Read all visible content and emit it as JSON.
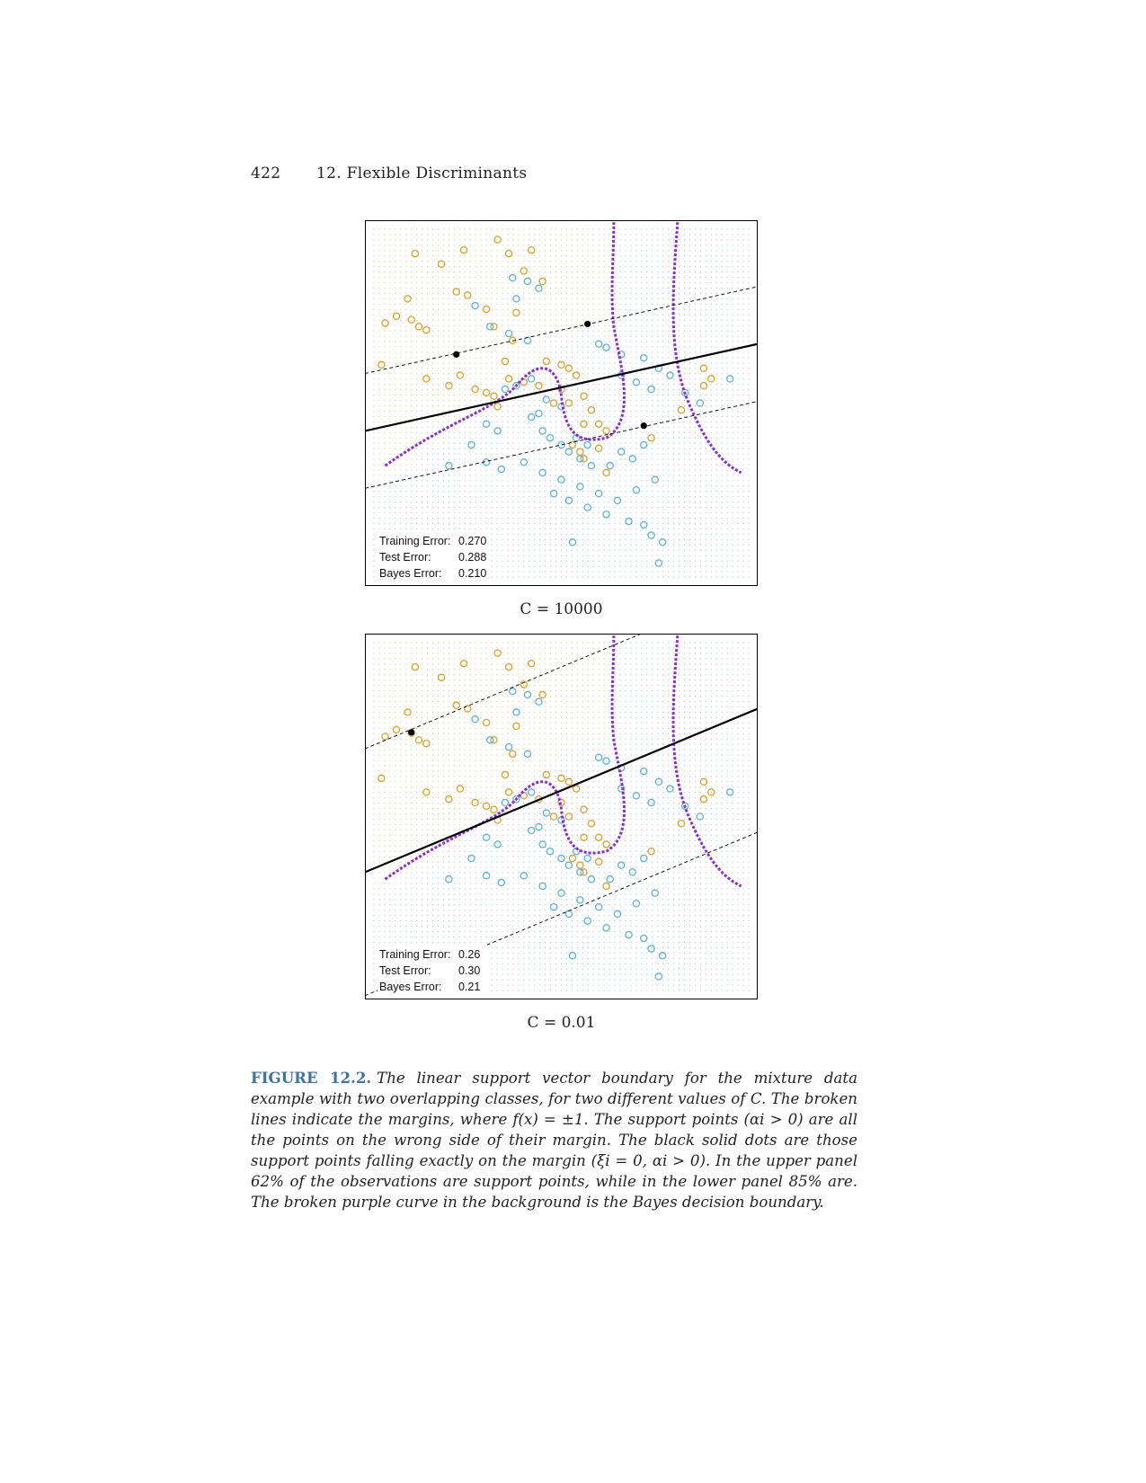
{
  "header": {
    "page_number": "422",
    "chapter": "12. Flexible Discriminants"
  },
  "panels": [
    {
      "title": "C = 10000",
      "errors": [
        {
          "label": "Training Error:",
          "value": "0.270"
        },
        {
          "label": "Test Error:",
          "value": "0.288"
        },
        {
          "label": "Bayes Error:",
          "value": "0.210"
        }
      ],
      "boundary": {
        "left_y": 0.42,
        "right_y": 0.67
      },
      "margin_offset": 0.165
    },
    {
      "title": "C = 0.01",
      "errors": [
        {
          "label": "Training Error:",
          "value": "0.26"
        },
        {
          "label": "Test Error:",
          "value": "0.30"
        },
        {
          "label": "Bayes Error:",
          "value": "0.21"
        }
      ],
      "boundary": {
        "left_y": 0.34,
        "right_y": 0.81
      },
      "margin_offset": 0.355
    }
  ],
  "colors": {
    "orange_class": "#e0a020",
    "blue_class": "#5ab4d8",
    "bayes": "#8a2be2",
    "svm": "#000000"
  },
  "caption": {
    "label": "FIGURE 12.2.",
    "text": "The linear support vector boundary for the mixture data example with two overlapping classes, for two different values of C. The broken lines indicate the margins, where f(x) = ±1. The support points (αi > 0) are all the points on the wrong side of their margin. The black solid dots are those support points falling exactly on the margin (ξi = 0, αi > 0). In the upper panel 62% of the observations are support points, while in the lower panel 85% are. The broken purple curve in the background is the Bayes decision boundary."
  },
  "chart_data": [
    {
      "type": "scatter",
      "title": "C = 10000",
      "series": [
        {
          "name": "",
          "color": "#e0a020",
          "points": [
            [
              0.11,
              0.93
            ],
            [
              0.18,
              0.9
            ],
            [
              0.24,
              0.94
            ],
            [
              0.33,
              0.97
            ],
            [
              0.36,
              0.93
            ],
            [
              0.42,
              0.94
            ],
            [
              0.4,
              0.88
            ],
            [
              0.45,
              0.85
            ],
            [
              0.06,
              0.75
            ],
            [
              0.1,
              0.74
            ],
            [
              0.12,
              0.72
            ],
            [
              0.14,
              0.71
            ],
            [
              0.03,
              0.73
            ],
            [
              0.22,
              0.82
            ],
            [
              0.25,
              0.81
            ],
            [
              0.3,
              0.77
            ],
            [
              0.32,
              0.72
            ],
            [
              0.38,
              0.76
            ],
            [
              0.37,
              0.68
            ],
            [
              0.46,
              0.62
            ],
            [
              0.5,
              0.61
            ],
            [
              0.52,
              0.6
            ],
            [
              0.54,
              0.58
            ],
            [
              0.35,
              0.62
            ],
            [
              0.36,
              0.57
            ],
            [
              0.4,
              0.56
            ],
            [
              0.44,
              0.55
            ],
            [
              0.5,
              0.54
            ],
            [
              0.48,
              0.5
            ],
            [
              0.52,
              0.5
            ],
            [
              0.56,
              0.52
            ],
            [
              0.58,
              0.48
            ],
            [
              0.56,
              0.44
            ],
            [
              0.6,
              0.44
            ],
            [
              0.62,
              0.42
            ],
            [
              0.2,
              0.55
            ],
            [
              0.27,
              0.54
            ],
            [
              0.3,
              0.53
            ],
            [
              0.32,
              0.52
            ],
            [
              0.33,
              0.49
            ],
            [
              0.02,
              0.61
            ],
            [
              0.14,
              0.57
            ],
            [
              0.23,
              0.58
            ],
            [
              0.09,
              0.8
            ],
            [
              0.53,
              0.38
            ],
            [
              0.55,
              0.36
            ],
            [
              0.56,
              0.34
            ],
            [
              0.6,
              0.37
            ],
            [
              0.62,
              0.3
            ],
            [
              0.74,
              0.4
            ],
            [
              0.82,
              0.48
            ],
            [
              0.88,
              0.55
            ],
            [
              0.9,
              0.57
            ],
            [
              0.88,
              0.6
            ]
          ]
        },
        {
          "name": "",
          "color": "#5ab4d8",
          "points": [
            [
              0.37,
              0.86
            ],
            [
              0.41,
              0.85
            ],
            [
              0.44,
              0.83
            ],
            [
              0.38,
              0.8
            ],
            [
              0.27,
              0.78
            ],
            [
              0.31,
              0.72
            ],
            [
              0.36,
              0.7
            ],
            [
              0.41,
              0.68
            ],
            [
              0.6,
              0.67
            ],
            [
              0.62,
              0.66
            ],
            [
              0.66,
              0.64
            ],
            [
              0.72,
              0.63
            ],
            [
              0.76,
              0.6
            ],
            [
              0.79,
              0.58
            ],
            [
              0.83,
              0.53
            ],
            [
              0.87,
              0.5
            ],
            [
              0.95,
              0.57
            ],
            [
              0.66,
              0.58
            ],
            [
              0.7,
              0.56
            ],
            [
              0.74,
              0.54
            ],
            [
              0.42,
              0.57
            ],
            [
              0.38,
              0.55
            ],
            [
              0.35,
              0.54
            ],
            [
              0.46,
              0.51
            ],
            [
              0.5,
              0.49
            ],
            [
              0.44,
              0.47
            ],
            [
              0.42,
              0.46
            ],
            [
              0.45,
              0.42
            ],
            [
              0.47,
              0.4
            ],
            [
              0.5,
              0.38
            ],
            [
              0.54,
              0.4
            ],
            [
              0.57,
              0.38
            ],
            [
              0.52,
              0.36
            ],
            [
              0.55,
              0.34
            ],
            [
              0.58,
              0.32
            ],
            [
              0.63,
              0.32
            ],
            [
              0.66,
              0.36
            ],
            [
              0.69,
              0.34
            ],
            [
              0.72,
              0.38
            ],
            [
              0.3,
              0.44
            ],
            [
              0.33,
              0.42
            ],
            [
              0.26,
              0.38
            ],
            [
              0.2,
              0.32
            ],
            [
              0.3,
              0.33
            ],
            [
              0.34,
              0.31
            ],
            [
              0.4,
              0.33
            ],
            [
              0.45,
              0.3
            ],
            [
              0.5,
              0.28
            ],
            [
              0.55,
              0.26
            ],
            [
              0.6,
              0.24
            ],
            [
              0.65,
              0.22
            ],
            [
              0.7,
              0.25
            ],
            [
              0.75,
              0.28
            ],
            [
              0.48,
              0.24
            ],
            [
              0.52,
              0.22
            ],
            [
              0.57,
              0.2
            ],
            [
              0.62,
              0.18
            ],
            [
              0.68,
              0.16
            ],
            [
              0.72,
              0.15
            ],
            [
              0.74,
              0.12
            ],
            [
              0.77,
              0.1
            ],
            [
              0.53,
              0.1
            ],
            [
              0.76,
              0.04
            ]
          ]
        }
      ]
    },
    {
      "type": "scatter",
      "title": "C = 0.01",
      "series": [
        {
          "name": "",
          "color": "#e0a020",
          "points": [
            [
              0.11,
              0.93
            ],
            [
              0.18,
              0.9
            ],
            [
              0.24,
              0.94
            ],
            [
              0.33,
              0.97
            ],
            [
              0.36,
              0.93
            ],
            [
              0.42,
              0.94
            ],
            [
              0.4,
              0.88
            ],
            [
              0.45,
              0.85
            ],
            [
              0.06,
              0.75
            ],
            [
              0.1,
              0.74
            ],
            [
              0.12,
              0.72
            ],
            [
              0.14,
              0.71
            ],
            [
              0.03,
              0.73
            ],
            [
              0.22,
              0.82
            ],
            [
              0.25,
              0.81
            ],
            [
              0.3,
              0.77
            ],
            [
              0.32,
              0.72
            ],
            [
              0.38,
              0.76
            ],
            [
              0.37,
              0.68
            ],
            [
              0.46,
              0.62
            ],
            [
              0.5,
              0.61
            ],
            [
              0.52,
              0.6
            ],
            [
              0.54,
              0.58
            ],
            [
              0.35,
              0.62
            ],
            [
              0.36,
              0.57
            ],
            [
              0.4,
              0.56
            ],
            [
              0.44,
              0.55
            ],
            [
              0.5,
              0.54
            ],
            [
              0.48,
              0.5
            ],
            [
              0.52,
              0.5
            ],
            [
              0.56,
              0.52
            ],
            [
              0.58,
              0.48
            ],
            [
              0.56,
              0.44
            ],
            [
              0.6,
              0.44
            ],
            [
              0.62,
              0.42
            ],
            [
              0.2,
              0.55
            ],
            [
              0.27,
              0.54
            ],
            [
              0.3,
              0.53
            ],
            [
              0.32,
              0.52
            ],
            [
              0.33,
              0.49
            ],
            [
              0.02,
              0.61
            ],
            [
              0.14,
              0.57
            ],
            [
              0.23,
              0.58
            ],
            [
              0.09,
              0.8
            ],
            [
              0.53,
              0.38
            ],
            [
              0.55,
              0.36
            ],
            [
              0.56,
              0.34
            ],
            [
              0.6,
              0.37
            ],
            [
              0.62,
              0.3
            ],
            [
              0.74,
              0.4
            ],
            [
              0.82,
              0.48
            ],
            [
              0.88,
              0.55
            ],
            [
              0.9,
              0.57
            ],
            [
              0.88,
              0.6
            ]
          ]
        },
        {
          "name": "",
          "color": "#5ab4d8",
          "points": [
            [
              0.37,
              0.86
            ],
            [
              0.41,
              0.85
            ],
            [
              0.44,
              0.83
            ],
            [
              0.38,
              0.8
            ],
            [
              0.27,
              0.78
            ],
            [
              0.31,
              0.72
            ],
            [
              0.36,
              0.7
            ],
            [
              0.41,
              0.68
            ],
            [
              0.6,
              0.67
            ],
            [
              0.62,
              0.66
            ],
            [
              0.66,
              0.64
            ],
            [
              0.72,
              0.63
            ],
            [
              0.76,
              0.6
            ],
            [
              0.79,
              0.58
            ],
            [
              0.83,
              0.53
            ],
            [
              0.87,
              0.5
            ],
            [
              0.95,
              0.57
            ],
            [
              0.66,
              0.58
            ],
            [
              0.7,
              0.56
            ],
            [
              0.74,
              0.54
            ],
            [
              0.42,
              0.57
            ],
            [
              0.38,
              0.55
            ],
            [
              0.35,
              0.54
            ],
            [
              0.46,
              0.51
            ],
            [
              0.5,
              0.49
            ],
            [
              0.44,
              0.47
            ],
            [
              0.42,
              0.46
            ],
            [
              0.45,
              0.42
            ],
            [
              0.47,
              0.4
            ],
            [
              0.5,
              0.38
            ],
            [
              0.54,
              0.4
            ],
            [
              0.57,
              0.38
            ],
            [
              0.52,
              0.36
            ],
            [
              0.55,
              0.34
            ],
            [
              0.58,
              0.32
            ],
            [
              0.63,
              0.32
            ],
            [
              0.66,
              0.36
            ],
            [
              0.69,
              0.34
            ],
            [
              0.72,
              0.38
            ],
            [
              0.3,
              0.44
            ],
            [
              0.33,
              0.42
            ],
            [
              0.26,
              0.38
            ],
            [
              0.2,
              0.32
            ],
            [
              0.3,
              0.33
            ],
            [
              0.34,
              0.31
            ],
            [
              0.4,
              0.33
            ],
            [
              0.45,
              0.3
            ],
            [
              0.5,
              0.28
            ],
            [
              0.55,
              0.26
            ],
            [
              0.6,
              0.24
            ],
            [
              0.65,
              0.22
            ],
            [
              0.7,
              0.25
            ],
            [
              0.75,
              0.28
            ],
            [
              0.48,
              0.24
            ],
            [
              0.52,
              0.22
            ],
            [
              0.57,
              0.2
            ],
            [
              0.62,
              0.18
            ],
            [
              0.68,
              0.16
            ],
            [
              0.72,
              0.15
            ],
            [
              0.74,
              0.12
            ],
            [
              0.77,
              0.1
            ],
            [
              0.53,
              0.1
            ],
            [
              0.76,
              0.04
            ]
          ]
        }
      ]
    }
  ]
}
